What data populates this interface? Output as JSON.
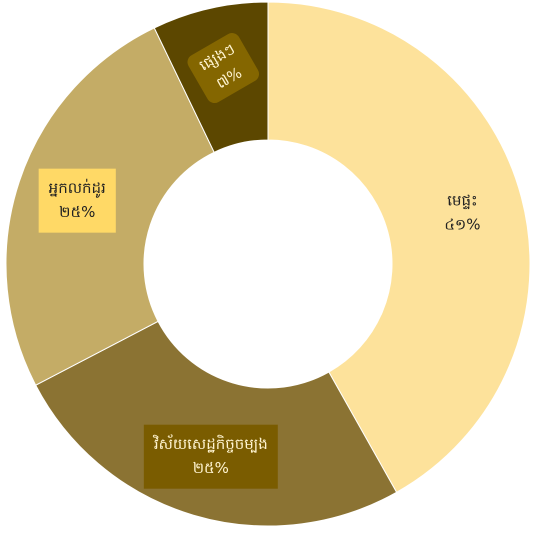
{
  "chart_data": {
    "type": "donut",
    "categories": [
      "មេផ្ទះ",
      "វិស័យសេដ្ឋកិច្ចចម្បង",
      "អ្នកលក់ដូរ",
      "ផ្សេងៗ"
    ],
    "values": [
      41,
      25,
      25,
      7
    ],
    "value_labels": [
      "៤១%",
      "២៥%",
      "២៥%",
      "៧%"
    ],
    "colors": [
      "#fde29b",
      "#8b7333",
      "#c4ac66",
      "#5c4700"
    ]
  }
}
